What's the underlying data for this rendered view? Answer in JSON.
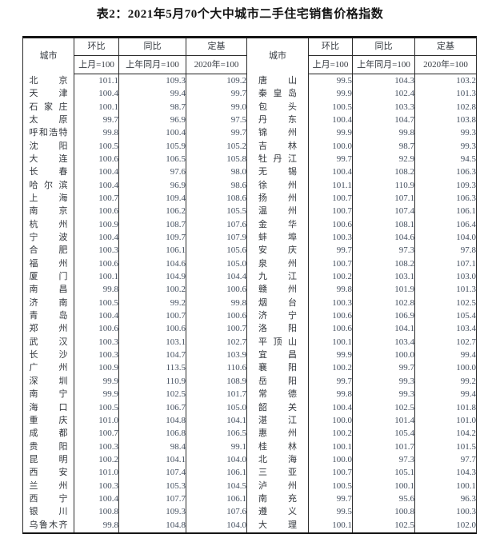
{
  "title": "表2：2021年5月70个大中城市二手住宅销售价格指数",
  "header": {
    "city": "城市",
    "mom": "环比",
    "mom_base": "上月=100",
    "yoy": "同比",
    "yoy_base": "上年同月=100",
    "fixed": "定基",
    "fixed_base": "2020年=100"
  },
  "colors": {
    "text": "#3f4856",
    "border": "#2c2c2c",
    "title": "#141414"
  },
  "left": [
    {
      "city": "北京",
      "mom": "101.1",
      "yoy": "109.3",
      "base": "109.2"
    },
    {
      "city": "天津",
      "mom": "100.4",
      "yoy": "99.4",
      "base": "99.7"
    },
    {
      "city": "石家庄",
      "mom": "100.1",
      "yoy": "98.7",
      "base": "99.0"
    },
    {
      "city": "太原",
      "mom": "99.7",
      "yoy": "96.9",
      "base": "97.5"
    },
    {
      "city": "呼和浩特",
      "mom": "99.8",
      "yoy": "100.4",
      "base": "99.7"
    },
    {
      "city": "沈阳",
      "mom": "100.5",
      "yoy": "105.9",
      "base": "105.2"
    },
    {
      "city": "大连",
      "mom": "100.6",
      "yoy": "106.5",
      "base": "105.8"
    },
    {
      "city": "长春",
      "mom": "100.4",
      "yoy": "97.6",
      "base": "98.0"
    },
    {
      "city": "哈尔滨",
      "mom": "100.4",
      "yoy": "96.9",
      "base": "98.6"
    },
    {
      "city": "上海",
      "mom": "100.7",
      "yoy": "109.4",
      "base": "108.6"
    },
    {
      "city": "南京",
      "mom": "100.6",
      "yoy": "106.2",
      "base": "105.5"
    },
    {
      "city": "杭州",
      "mom": "100.9",
      "yoy": "108.7",
      "base": "107.6"
    },
    {
      "city": "宁波",
      "mom": "100.4",
      "yoy": "109.7",
      "base": "107.9"
    },
    {
      "city": "合肥",
      "mom": "100.3",
      "yoy": "106.1",
      "base": "105.6"
    },
    {
      "city": "福州",
      "mom": "100.6",
      "yoy": "104.6",
      "base": "105.0"
    },
    {
      "city": "厦门",
      "mom": "100.1",
      "yoy": "104.9",
      "base": "104.4"
    },
    {
      "city": "南昌",
      "mom": "99.8",
      "yoy": "100.2",
      "base": "100.6"
    },
    {
      "city": "济南",
      "mom": "100.5",
      "yoy": "99.2",
      "base": "99.8"
    },
    {
      "city": "青岛",
      "mom": "100.4",
      "yoy": "100.7",
      "base": "100.6"
    },
    {
      "city": "郑州",
      "mom": "100.6",
      "yoy": "100.6",
      "base": "100.7"
    },
    {
      "city": "武汉",
      "mom": "100.3",
      "yoy": "103.1",
      "base": "102.7"
    },
    {
      "city": "长沙",
      "mom": "100.3",
      "yoy": "104.7",
      "base": "103.9"
    },
    {
      "city": "广州",
      "mom": "100.9",
      "yoy": "113.5",
      "base": "110.6"
    },
    {
      "city": "深圳",
      "mom": "99.9",
      "yoy": "110.9",
      "base": "108.9"
    },
    {
      "city": "南宁",
      "mom": "99.9",
      "yoy": "102.5",
      "base": "101.7"
    },
    {
      "city": "海口",
      "mom": "100.5",
      "yoy": "106.7",
      "base": "105.0"
    },
    {
      "city": "重庆",
      "mom": "101.0",
      "yoy": "104.8",
      "base": "104.1"
    },
    {
      "city": "成都",
      "mom": "100.7",
      "yoy": "106.8",
      "base": "106.5"
    },
    {
      "city": "贵阳",
      "mom": "100.3",
      "yoy": "98.4",
      "base": "99.1"
    },
    {
      "city": "昆明",
      "mom": "100.2",
      "yoy": "104.1",
      "base": "104.0"
    },
    {
      "city": "西安",
      "mom": "101.0",
      "yoy": "107.4",
      "base": "106.1"
    },
    {
      "city": "兰州",
      "mom": "100.3",
      "yoy": "105.3",
      "base": "104.5"
    },
    {
      "city": "西宁",
      "mom": "100.4",
      "yoy": "107.7",
      "base": "106.1"
    },
    {
      "city": "银川",
      "mom": "100.8",
      "yoy": "109.3",
      "base": "107.6"
    },
    {
      "city": "乌鲁木齐",
      "mom": "99.8",
      "yoy": "104.8",
      "base": "104.0"
    }
  ],
  "right": [
    {
      "city": "唐山",
      "mom": "99.5",
      "yoy": "104.3",
      "base": "103.2"
    },
    {
      "city": "秦皇岛",
      "mom": "99.9",
      "yoy": "102.4",
      "base": "101.3"
    },
    {
      "city": "包头",
      "mom": "100.5",
      "yoy": "103.3",
      "base": "102.8"
    },
    {
      "city": "丹东",
      "mom": "100.4",
      "yoy": "104.7",
      "base": "103.8"
    },
    {
      "city": "锦州",
      "mom": "99.9",
      "yoy": "99.8",
      "base": "99.3"
    },
    {
      "city": "吉林",
      "mom": "100.0",
      "yoy": "98.7",
      "base": "99.3"
    },
    {
      "city": "牡丹江",
      "mom": "99.7",
      "yoy": "92.9",
      "base": "94.5"
    },
    {
      "city": "无锡",
      "mom": "100.4",
      "yoy": "108.2",
      "base": "106.3"
    },
    {
      "city": "徐州",
      "mom": "101.1",
      "yoy": "110.9",
      "base": "109.3"
    },
    {
      "city": "扬州",
      "mom": "100.7",
      "yoy": "107.1",
      "base": "106.3"
    },
    {
      "city": "温州",
      "mom": "100.7",
      "yoy": "107.4",
      "base": "106.1"
    },
    {
      "city": "金华",
      "mom": "100.6",
      "yoy": "108.1",
      "base": "106.4"
    },
    {
      "city": "蚌埠",
      "mom": "100.3",
      "yoy": "104.6",
      "base": "104.0"
    },
    {
      "city": "安庆",
      "mom": "99.7",
      "yoy": "97.3",
      "base": "97.8"
    },
    {
      "city": "泉州",
      "mom": "100.7",
      "yoy": "108.2",
      "base": "107.1"
    },
    {
      "city": "九江",
      "mom": "100.2",
      "yoy": "103.1",
      "base": "103.0"
    },
    {
      "city": "赣州",
      "mom": "99.8",
      "yoy": "101.9",
      "base": "101.3"
    },
    {
      "city": "烟台",
      "mom": "100.3",
      "yoy": "102.8",
      "base": "102.5"
    },
    {
      "city": "济宁",
      "mom": "100.6",
      "yoy": "106.9",
      "base": "105.4"
    },
    {
      "city": "洛阳",
      "mom": "100.6",
      "yoy": "104.1",
      "base": "103.4"
    },
    {
      "city": "平顶山",
      "mom": "100.1",
      "yoy": "103.4",
      "base": "102.7"
    },
    {
      "city": "宜昌",
      "mom": "99.9",
      "yoy": "100.0",
      "base": "99.4"
    },
    {
      "city": "襄阳",
      "mom": "100.2",
      "yoy": "99.7",
      "base": "100.0"
    },
    {
      "city": "岳阳",
      "mom": "99.7",
      "yoy": "99.3",
      "base": "99.2"
    },
    {
      "city": "常德",
      "mom": "99.8",
      "yoy": "99.3",
      "base": "99.4"
    },
    {
      "city": "韶关",
      "mom": "100.4",
      "yoy": "102.5",
      "base": "101.8"
    },
    {
      "city": "湛江",
      "mom": "100.0",
      "yoy": "101.4",
      "base": "101.0"
    },
    {
      "city": "惠州",
      "mom": "100.2",
      "yoy": "105.4",
      "base": "104.2"
    },
    {
      "city": "桂林",
      "mom": "100.1",
      "yoy": "101.7",
      "base": "101.5"
    },
    {
      "city": "北海",
      "mom": "100.0",
      "yoy": "97.3",
      "base": "97.7"
    },
    {
      "city": "三亚",
      "mom": "100.7",
      "yoy": "105.1",
      "base": "104.3"
    },
    {
      "city": "泸州",
      "mom": "100.5",
      "yoy": "100.1",
      "base": "100.1"
    },
    {
      "city": "南充",
      "mom": "99.7",
      "yoy": "95.6",
      "base": "96.3"
    },
    {
      "city": "遵义",
      "mom": "99.5",
      "yoy": "100.8",
      "base": "100.3"
    },
    {
      "city": "大理",
      "mom": "100.1",
      "yoy": "102.5",
      "base": "102.0"
    }
  ]
}
